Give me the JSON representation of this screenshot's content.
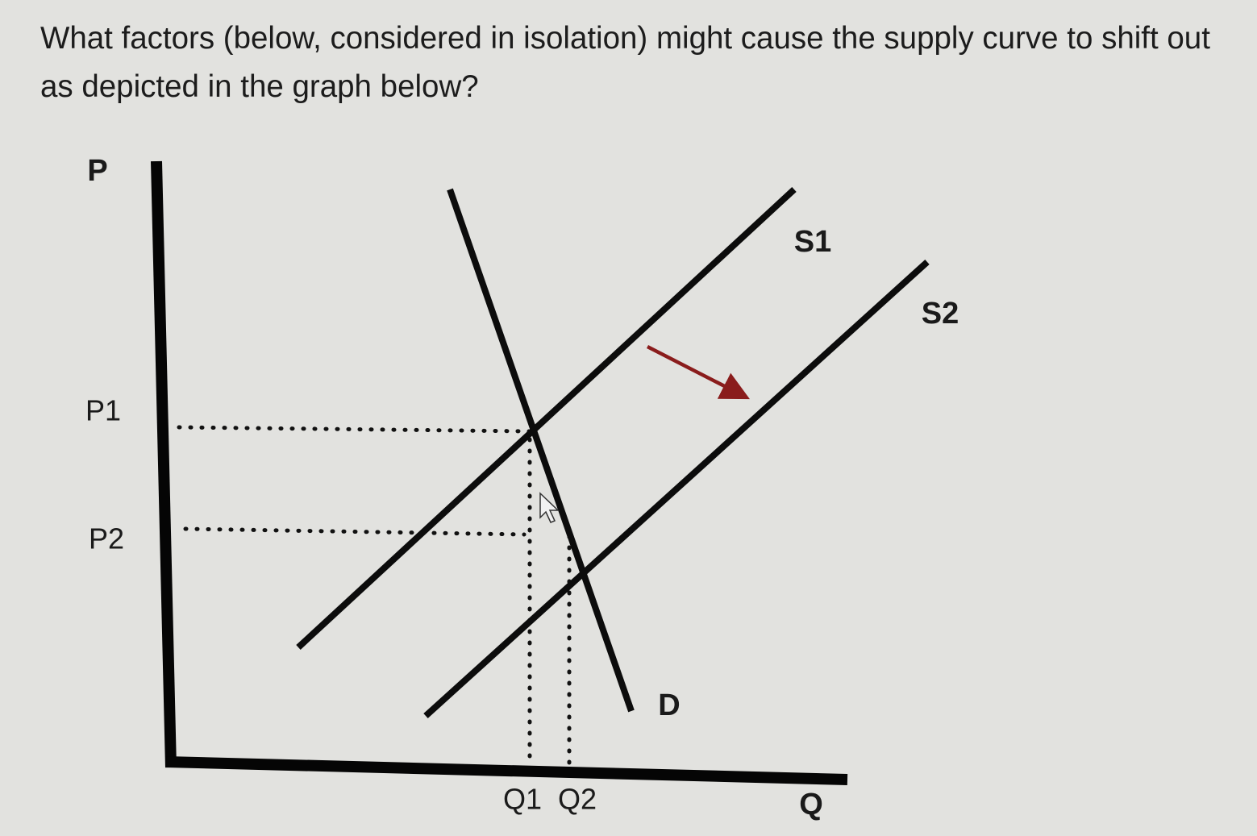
{
  "question": "What factors (below, considered in isolation) might cause the supply curve to shift out as depicted in the graph below?",
  "graph": {
    "y_axis_label": "P",
    "x_axis_label": "Q",
    "price_labels": [
      "P1",
      "P2"
    ],
    "quantity_labels": [
      "Q1",
      "Q2"
    ],
    "curves": [
      {
        "label": "S1"
      },
      {
        "label": "S2"
      },
      {
        "label": "D"
      }
    ]
  }
}
